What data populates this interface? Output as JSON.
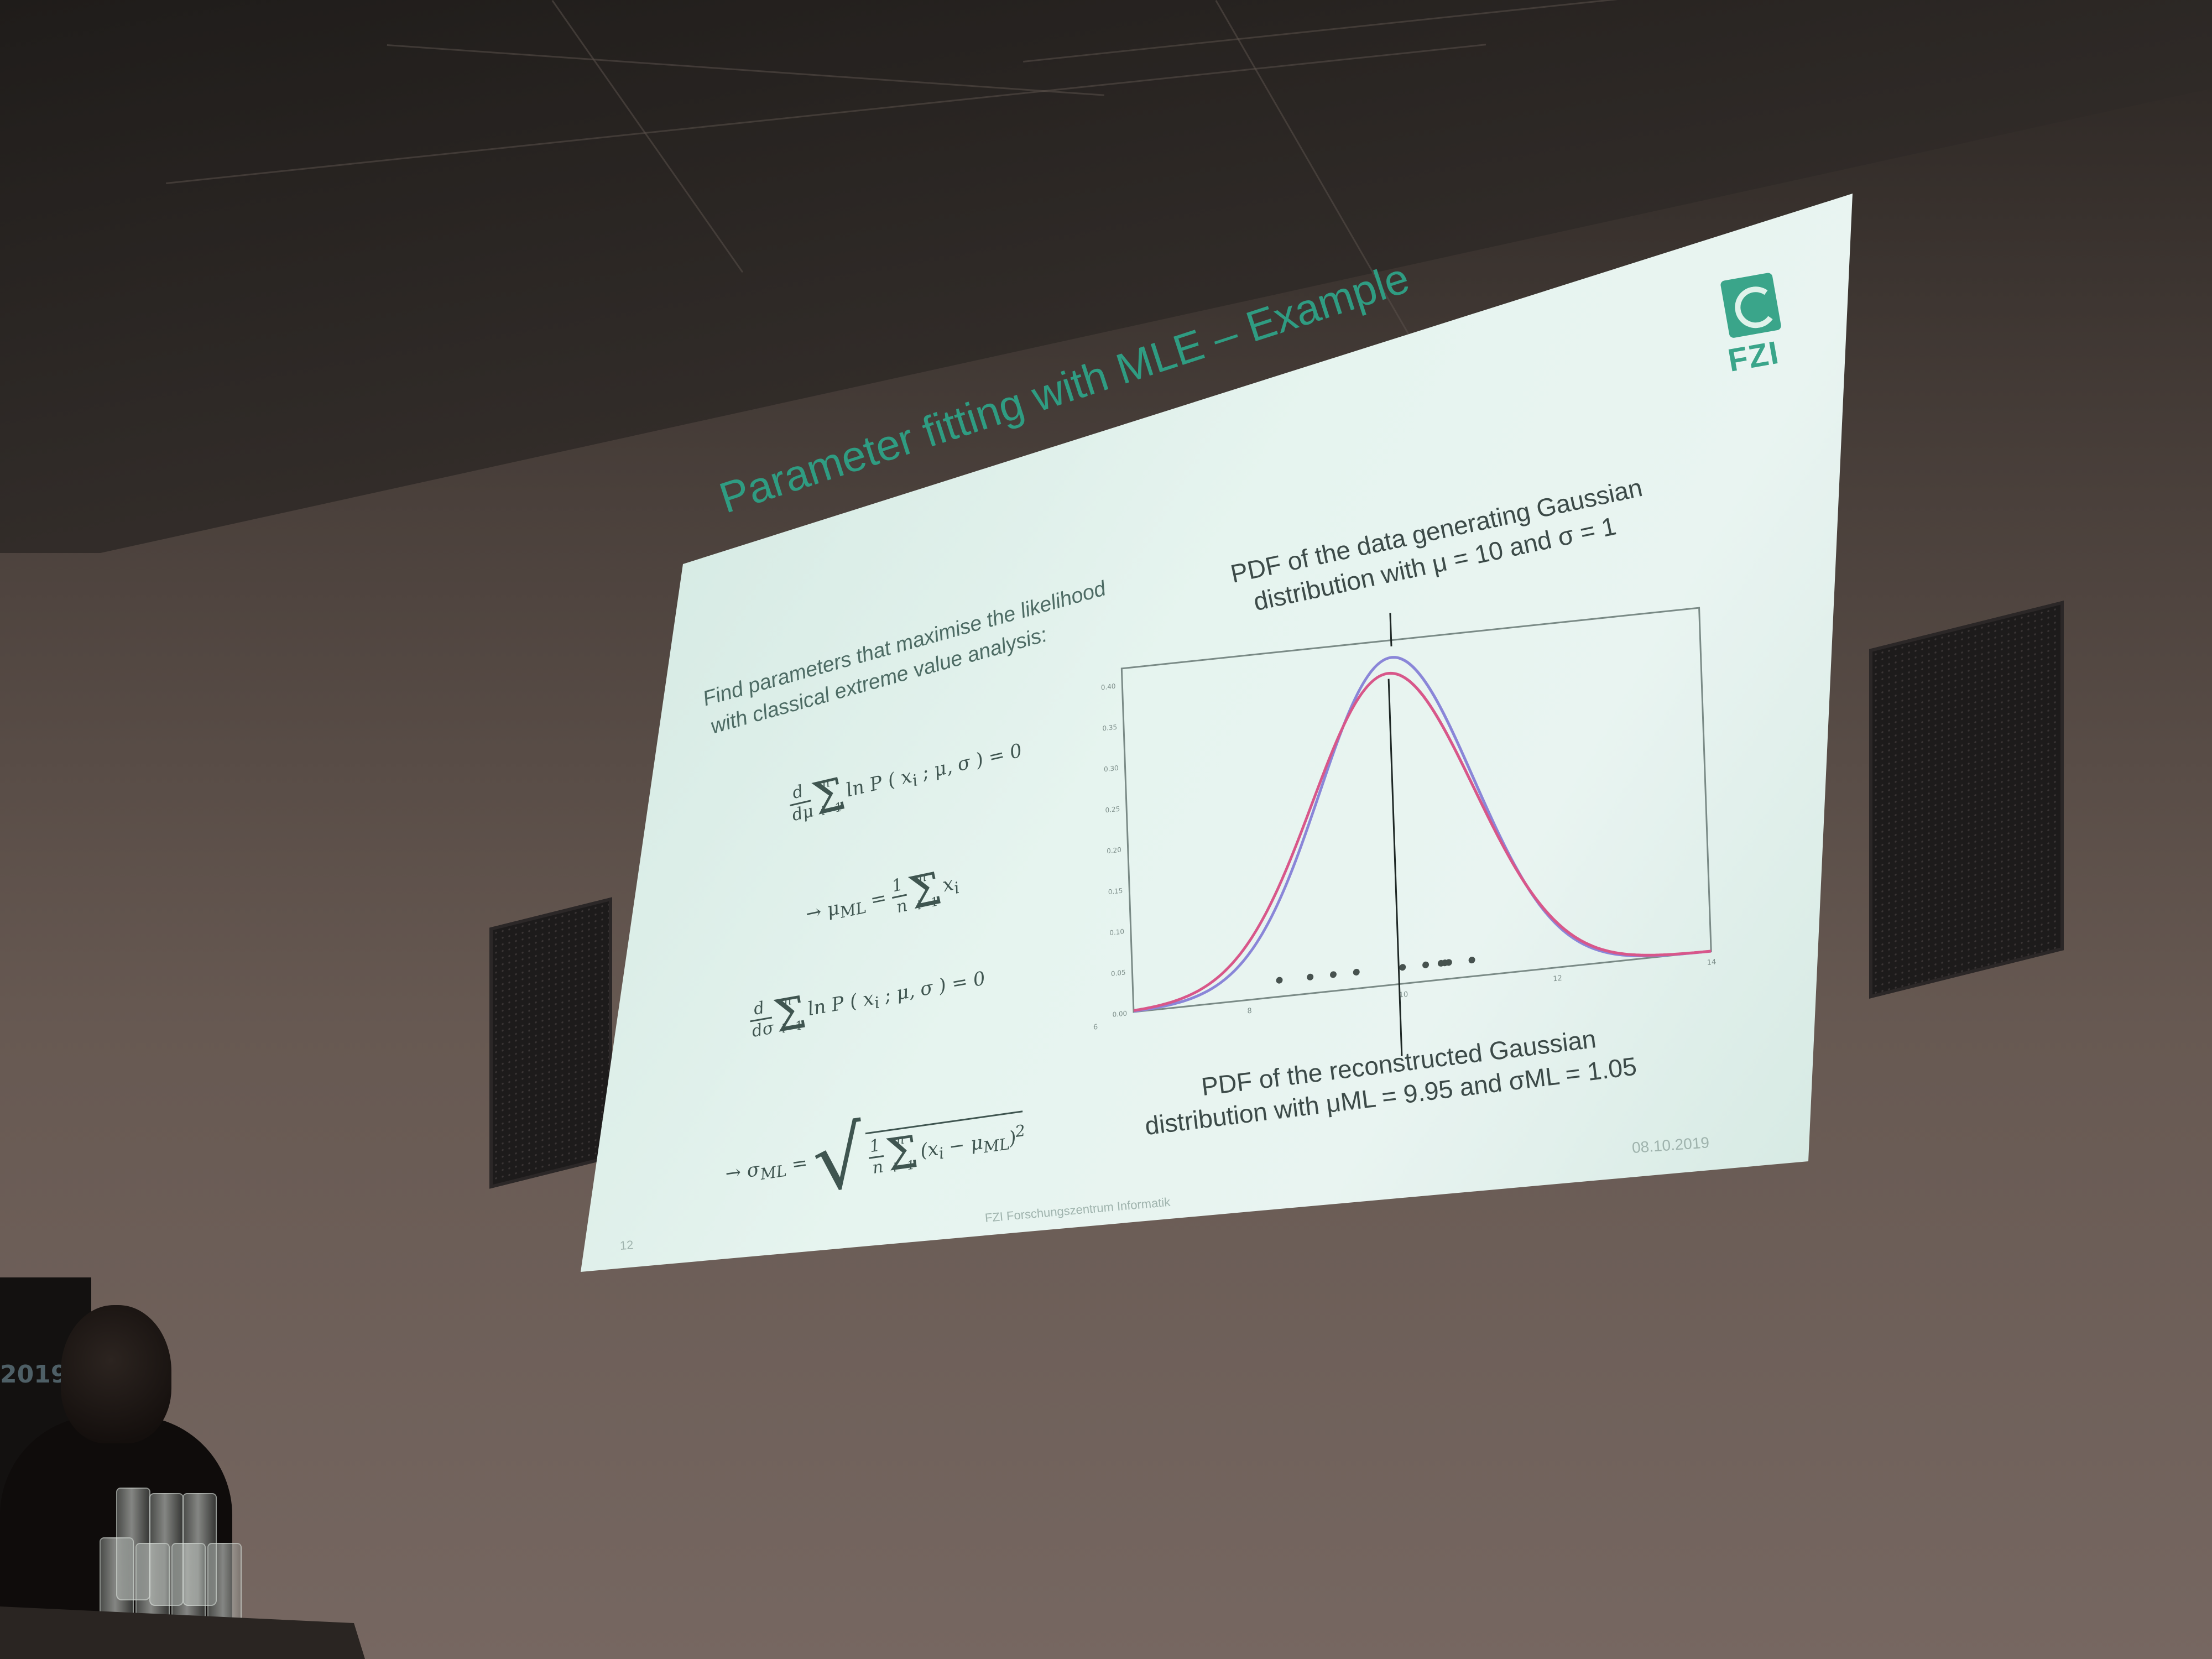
{
  "slide": {
    "title": "Parameter fitting with MLE – Example",
    "intro_line1": "Find parameters that maximise the likelihood",
    "intro_line2": "with classical extreme value analysis:",
    "logo_text": "FZI",
    "annotation_top_line1": "PDF of the data generating Gaussian",
    "annotation_top_line2": "distribution with μ = 10 and σ = 1",
    "annotation_bottom_line1": "PDF of the reconstructed Gaussian",
    "annotation_bottom_line2": "distribution with μML = 9.95 and σML = 1.05",
    "footer_center": "FZI Forschungszentrum Informatik",
    "footer_date": "08.10.2019",
    "page_number": "12"
  },
  "equations": {
    "eq1": "d/dμ Σ_{i=1}^{n} ln P(x_i ; μ, σ) = 0",
    "eq2": "→ μ_ML = 1/n Σ_{i=1}^{n} x_i",
    "eq3": "d/dσ Σ_{i=1}^{n} ln P(x_i ; μ, σ) = 0",
    "eq4": "→ σ_ML = sqrt( 1/n Σ_{i=1}^{n} (x_i − μ_ML)^2 )"
  },
  "chart_data": {
    "type": "line",
    "series": [
      {
        "name": "",
        "color": "#8a86d8",
        "mu": 10,
        "sigma": 1
      },
      {
        "name": "",
        "color": "#d8578a",
        "mu": 9.95,
        "sigma": 1.05
      }
    ],
    "samples_x": [
      8.4,
      8.8,
      9.1,
      9.4,
      10.0,
      10.3,
      10.5,
      10.55,
      10.6,
      10.9
    ],
    "xlim": [
      6.5,
      14
    ],
    "ylim": [
      0,
      0.42
    ],
    "xticks": [
      "6",
      "8",
      "10",
      "12",
      "14"
    ],
    "yticks": [
      "0.00",
      "0.05",
      "0.10",
      "0.15",
      "0.20",
      "0.25",
      "0.30",
      "0.35",
      "0.40"
    ],
    "colors": {
      "chart_border": "#7a8a86",
      "sample_points": "#47524f",
      "annotation_line": "#1e2725"
    }
  },
  "scene": {
    "podium_badge": "2019",
    "colors": {
      "screen": "#e6f4ef",
      "accent": "#2f9c82",
      "wall": "#675952"
    }
  }
}
